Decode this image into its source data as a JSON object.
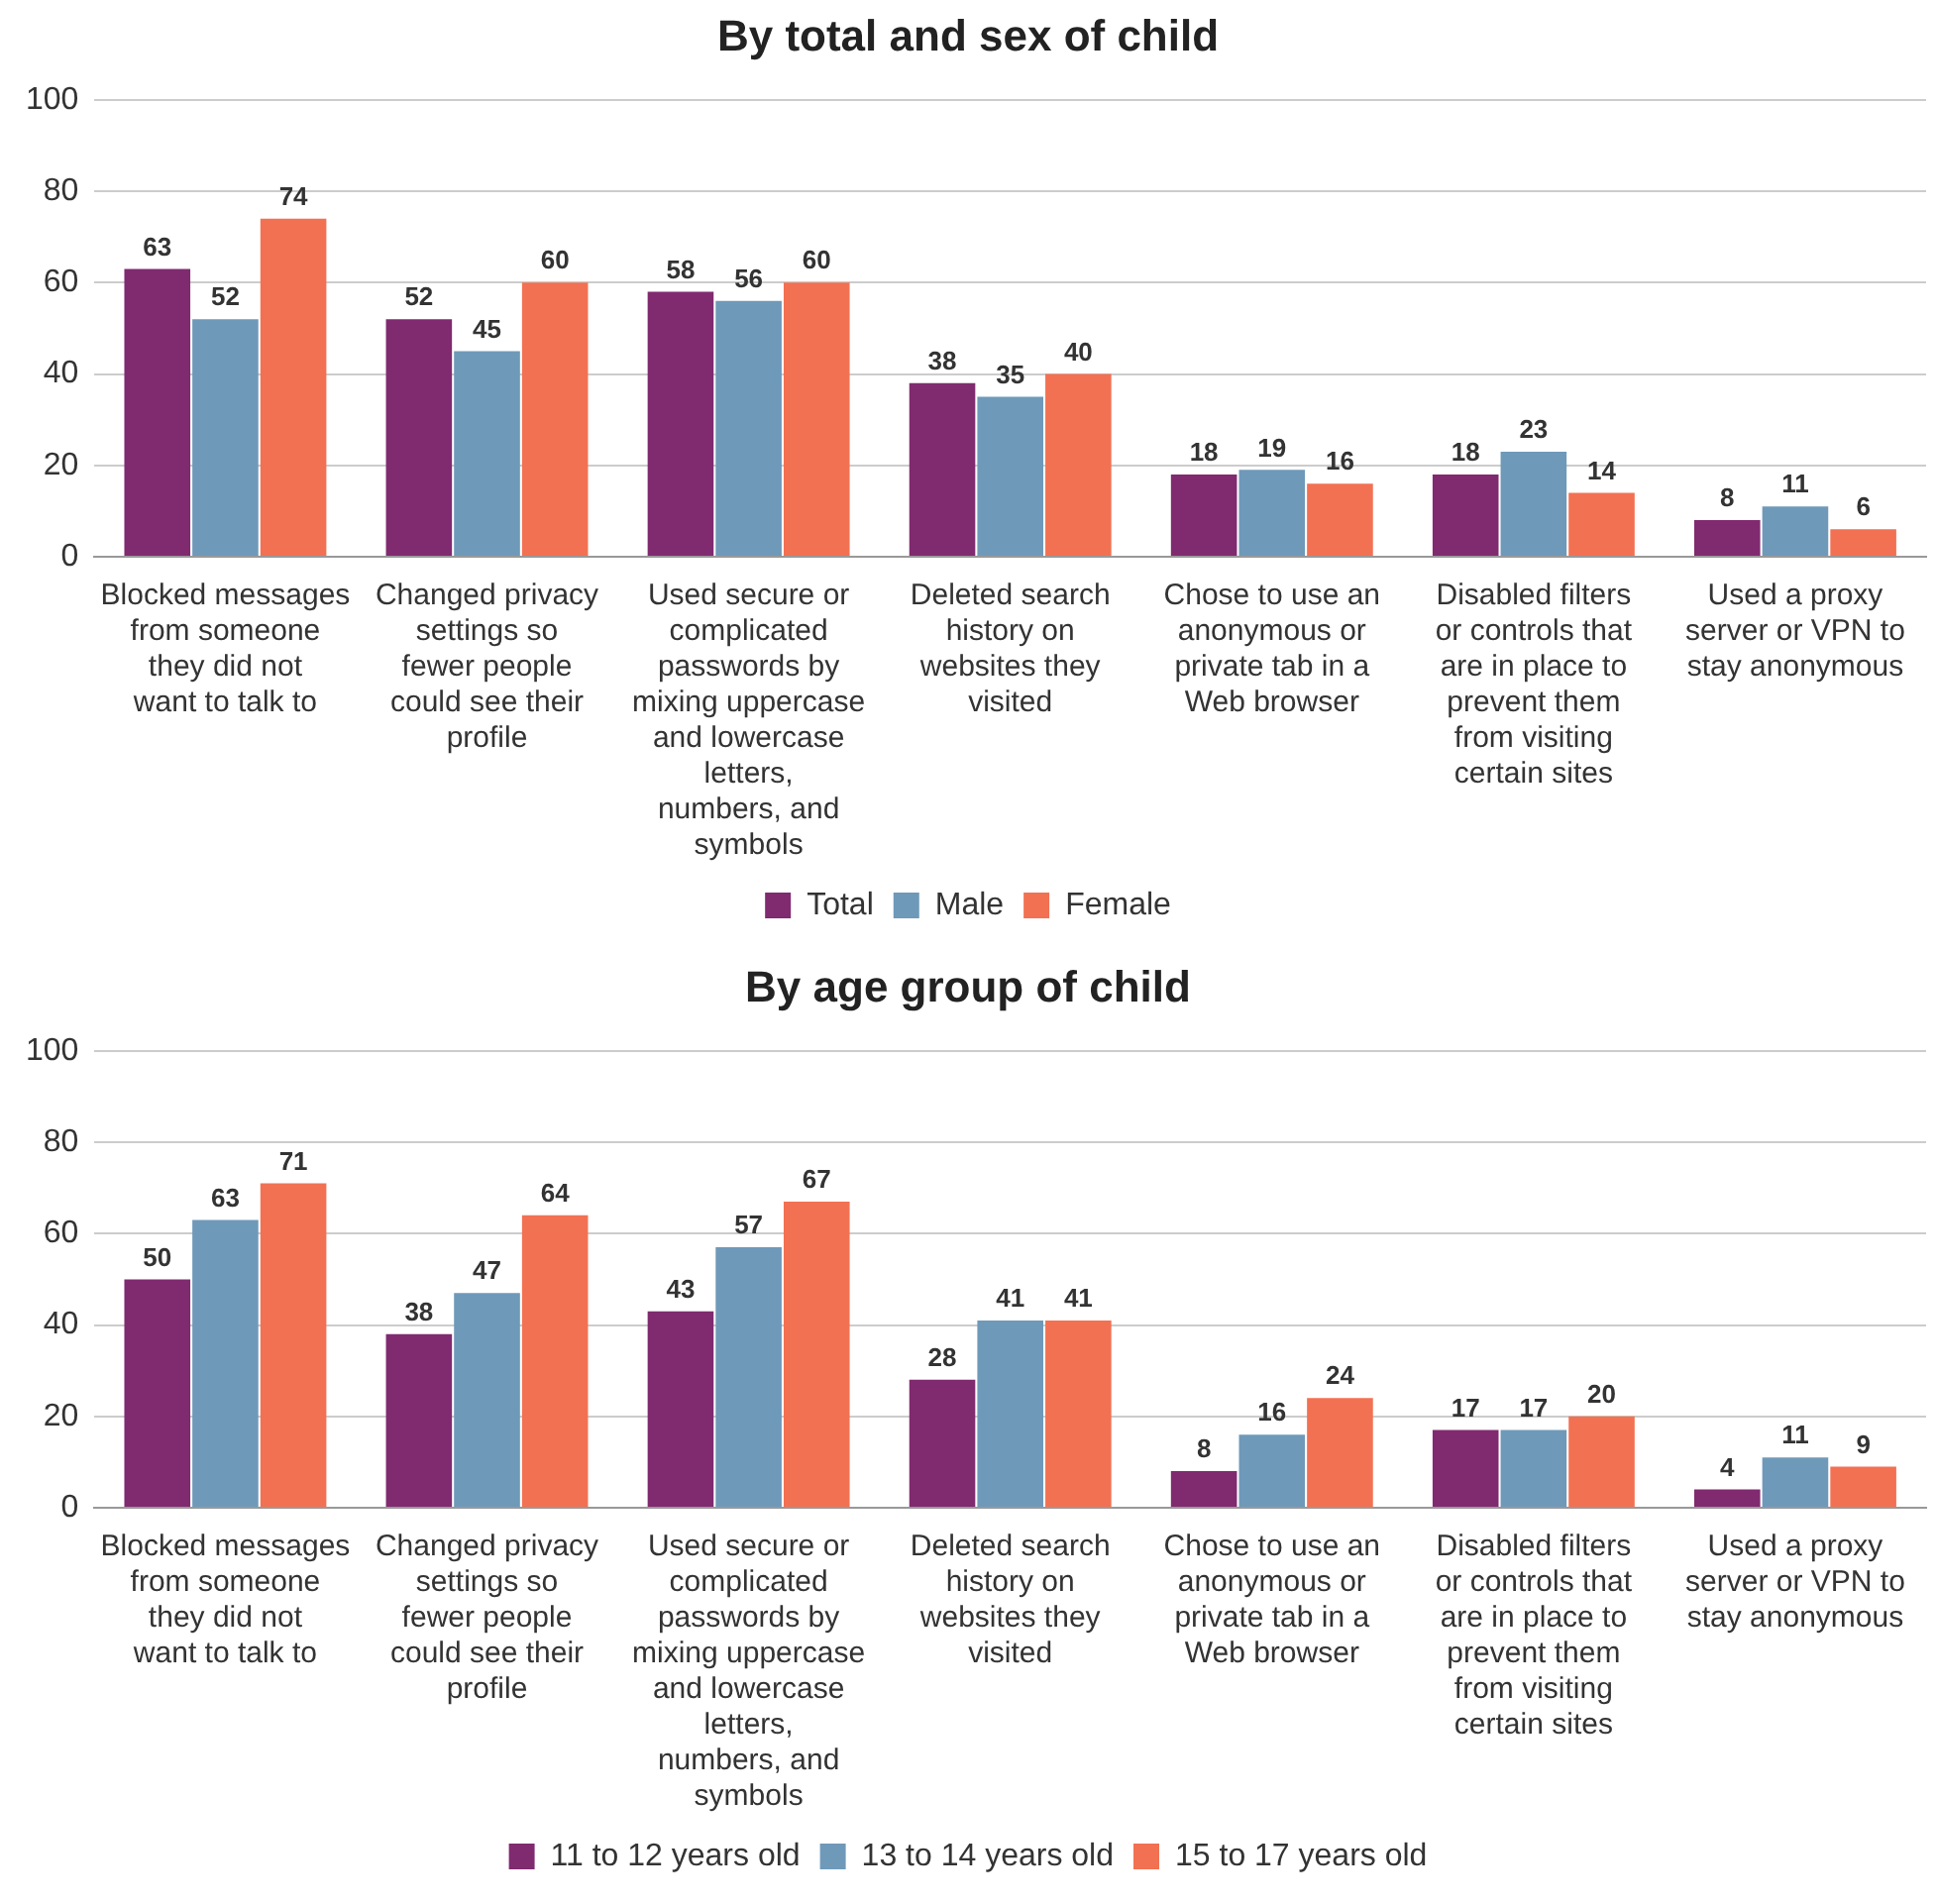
{
  "chart_data": [
    {
      "type": "bar",
      "title": "By total and sex of child",
      "categories": [
        "Blocked messages from someone they did not want to talk to",
        "Changed privacy settings so fewer people could see their profile",
        "Used secure or complicated passwords by mixing uppercase and lowercase letters, numbers, and symbols",
        "Deleted search history on websites they visited",
        "Chose to use an anonymous or private tab in a Web browser",
        "Disabled filters or controls that are in place to prevent them from visiting certain sites",
        "Used a proxy server or VPN to stay anonymous"
      ],
      "series": [
        {
          "name": "Total",
          "color": "#802a70",
          "values": [
            63,
            52,
            58,
            38,
            18,
            18,
            8
          ]
        },
        {
          "name": "Male",
          "color": "#6f99b9",
          "values": [
            52,
            45,
            56,
            35,
            19,
            23,
            11
          ]
        },
        {
          "name": "Female",
          "color": "#f27152",
          "values": [
            74,
            60,
            60,
            40,
            16,
            14,
            6
          ]
        }
      ],
      "ylim": [
        0,
        100
      ],
      "yticks": [
        0,
        20,
        40,
        60,
        80,
        100
      ],
      "grid": "y",
      "legend": "bottom",
      "data_labels": true
    },
    {
      "type": "bar",
      "title": "By age group of child",
      "categories": [
        "Blocked messages from someone they did not want to talk to",
        "Changed privacy settings so fewer people could see their profile",
        "Used secure or complicated passwords by mixing uppercase and lowercase letters, numbers, and symbols",
        "Deleted search history on websites they visited",
        "Chose to use an anonymous or private tab in a Web browser",
        "Disabled filters or controls that are in place to prevent them from visiting certain sites",
        "Used a proxy server or VPN to stay anonymous"
      ],
      "series": [
        {
          "name": "11 to 12 years old",
          "color": "#802a70",
          "values": [
            50,
            38,
            43,
            28,
            8,
            17,
            4
          ]
        },
        {
          "name": "13 to 14 years old",
          "color": "#6f99b9",
          "values": [
            63,
            47,
            57,
            41,
            16,
            17,
            11
          ]
        },
        {
          "name": "15 to 17 years old",
          "color": "#f27152",
          "values": [
            71,
            64,
            67,
            41,
            24,
            20,
            9
          ]
        }
      ],
      "ylim": [
        0,
        100
      ],
      "yticks": [
        0,
        20,
        40,
        60,
        80,
        100
      ],
      "grid": "y",
      "legend": "bottom",
      "data_labels": true
    }
  ]
}
